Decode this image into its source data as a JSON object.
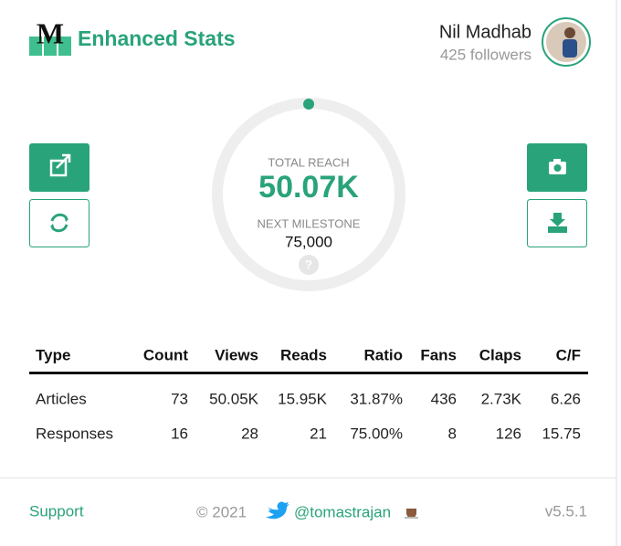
{
  "header": {
    "logo_letter": "M",
    "brand": "Enhanced Stats",
    "user_name": "Nil Madhab",
    "followers": "425 followers"
  },
  "reach": {
    "label": "TOTAL REACH",
    "value": "50.07K",
    "milestone_label": "NEXT MILESTONE",
    "milestone": "75,000"
  },
  "table": {
    "headers": [
      "Type",
      "Count",
      "Views",
      "Reads",
      "Ratio",
      "Fans",
      "Claps",
      "C/F"
    ],
    "rows": [
      [
        "Articles",
        "73",
        "50.05K",
        "15.95K",
        "31.87%",
        "436",
        "2.73K",
        "6.26"
      ],
      [
        "Responses",
        "16",
        "28",
        "21",
        "75.00%",
        "8",
        "126",
        "15.75"
      ]
    ]
  },
  "footer": {
    "support": "Support",
    "copyright": "© 2021",
    "twitter": "@tomastrajan",
    "version": "v5.5.1"
  }
}
